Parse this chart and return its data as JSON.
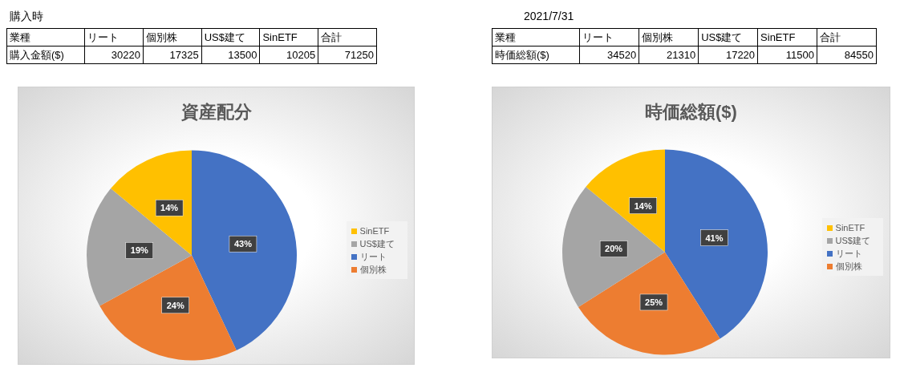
{
  "chart_data": [
    {
      "type": "pie",
      "title": "資産配分",
      "categories": [
        "リート",
        "個別株",
        "US$建て",
        "SinETF"
      ],
      "values": [
        43,
        24,
        19,
        14
      ],
      "colors": [
        "#4472c4",
        "#ed7d31",
        "#a5a5a5",
        "#ffc000"
      ],
      "value_labels": [
        "43%",
        "24%",
        "19%",
        "14%"
      ],
      "legend": "right",
      "annotations": [
        "購入時",
        "業種",
        "合計",
        "購入金額($)",
        "30220",
        "17325",
        "13500",
        "10205",
        "71250"
      ]
    },
    {
      "type": "pie",
      "title": "時価総額($)",
      "categories": [
        "リート",
        "個別株",
        "US$建て",
        "SinETF"
      ],
      "values": [
        41,
        25,
        20,
        14
      ],
      "colors": [
        "#4472c4",
        "#ed7d31",
        "#a5a5a5",
        "#ffc000"
      ],
      "value_labels": [
        "41%",
        "25%",
        "20%",
        "14%"
      ],
      "legend": "right",
      "annotations": [
        "2021/7/31",
        "業種",
        "合計",
        "時価総額($)",
        "34520",
        "21310",
        "17220",
        "11500",
        "84550"
      ]
    }
  ]
}
